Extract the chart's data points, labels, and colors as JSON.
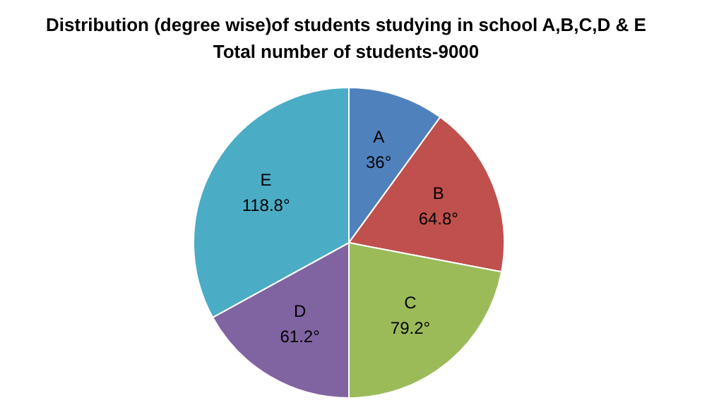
{
  "chart_data": {
    "type": "pie",
    "title": "Distribution (degree wise)of students studying in school A,B,C,D & E",
    "subtitle": "Total number of students-9000",
    "categories": [
      "A",
      "B",
      "C",
      "D",
      "E"
    ],
    "values": [
      36,
      64.8,
      79.2,
      61.2,
      118.8
    ],
    "colors": [
      "#4f81bd",
      "#c0504d",
      "#9bbb59",
      "#8064a2",
      "#4bacc6"
    ],
    "value_labels": [
      "36°",
      "64.8°",
      "79.2°",
      "61.2°",
      "118.8°"
    ],
    "legend": false
  }
}
